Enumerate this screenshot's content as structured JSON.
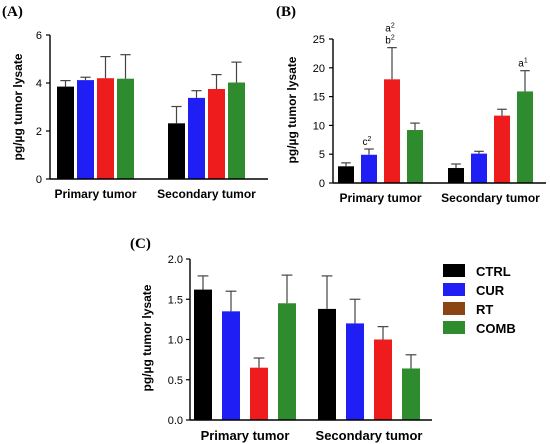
{
  "series_colors": [
    "#000000",
    "#1f1ff5",
    "#ee1c1c",
    "#2e8b2e"
  ],
  "legend": {
    "entries": [
      "CTRL",
      "CUR",
      "RT",
      "COMB"
    ],
    "colors": [
      "#000000",
      "#1f1ff5",
      "#8b4513",
      "#2e8b2e"
    ]
  },
  "chart_data": [
    {
      "type": "bar",
      "panel": "(A)",
      "ylabel": "pg/µg tumor lysate",
      "categories": [
        "Primary tumor",
        "Secondary tumor"
      ],
      "series": [
        {
          "name": "CTRL",
          "values": [
            3.85,
            2.32
          ],
          "errors": [
            0.25,
            0.7
          ]
        },
        {
          "name": "CUR",
          "values": [
            4.12,
            3.38
          ],
          "errors": [
            0.12,
            0.3
          ]
        },
        {
          "name": "RT",
          "values": [
            4.2,
            3.75
          ],
          "errors": [
            0.9,
            0.6
          ]
        },
        {
          "name": "COMB",
          "values": [
            4.18,
            4.02
          ],
          "errors": [
            1.0,
            0.85
          ]
        }
      ],
      "ylim": [
        0,
        6
      ],
      "yticks": [
        "0",
        "2",
        "4",
        "6"
      ],
      "annotations": []
    },
    {
      "type": "bar",
      "panel": "(B)",
      "ylabel": "pg/µg tumor lysate",
      "categories": [
        "Primary tumor",
        "Secondary tumor"
      ],
      "series": [
        {
          "name": "CTRL",
          "values": [
            2.9,
            2.6
          ],
          "errors": [
            0.6,
            0.7
          ]
        },
        {
          "name": "CUR",
          "values": [
            4.9,
            5.1
          ],
          "errors": [
            1.0,
            0.4
          ]
        },
        {
          "name": "RT",
          "values": [
            18.0,
            11.7
          ],
          "errors": [
            5.5,
            1.1
          ]
        },
        {
          "name": "COMB",
          "values": [
            9.2,
            15.9
          ],
          "errors": [
            1.2,
            3.6
          ]
        }
      ],
      "ylim": [
        0,
        25
      ],
      "yticks": [
        "0",
        "5",
        "10",
        "15",
        "20",
        "25"
      ],
      "annotations": [
        {
          "cat": 0,
          "series": 1,
          "lines": [
            {
              "base": "c",
              "sup": "2"
            }
          ]
        },
        {
          "cat": 0,
          "series": 2,
          "lines": [
            {
              "base": "a",
              "sup": "2"
            },
            {
              "base": "b",
              "sup": "2"
            }
          ]
        },
        {
          "cat": 1,
          "series": 3,
          "lines": [
            {
              "base": "a",
              "sup": "1"
            }
          ]
        }
      ]
    },
    {
      "type": "bar",
      "panel": "(C)",
      "ylabel": "pg/µg tumor lysate",
      "categories": [
        "Primary tumor",
        "Secondary tumor"
      ],
      "series": [
        {
          "name": "CTRL",
          "values": [
            1.62,
            1.38
          ],
          "errors": [
            0.17,
            0.41
          ]
        },
        {
          "name": "CUR",
          "values": [
            1.35,
            1.2
          ],
          "errors": [
            0.25,
            0.3
          ]
        },
        {
          "name": "RT",
          "values": [
            0.65,
            1.0
          ],
          "errors": [
            0.12,
            0.16
          ]
        },
        {
          "name": "COMB",
          "values": [
            1.45,
            0.64
          ],
          "errors": [
            0.35,
            0.17
          ]
        }
      ],
      "ylim": [
        0,
        2.0
      ],
      "yticks": [
        "0.0",
        "0.5",
        "1.0",
        "1.5",
        "2.0"
      ],
      "annotations": []
    }
  ]
}
